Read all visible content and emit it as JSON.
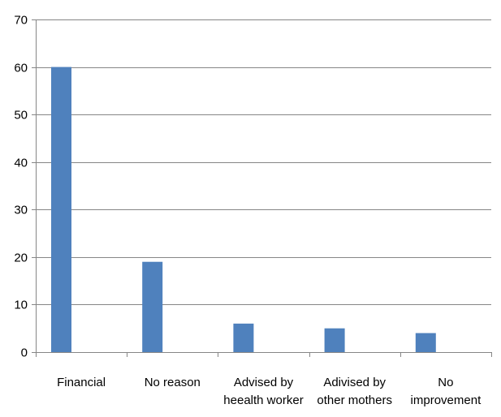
{
  "chart_data": {
    "type": "bar",
    "title": "",
    "xlabel": "",
    "ylabel": "",
    "categories": [
      [
        "Financial"
      ],
      [
        "No reason"
      ],
      [
        "Advised by",
        "heealth worker"
      ],
      [
        "Adivised by",
        "other mothers"
      ],
      [
        "No",
        "improvement"
      ]
    ],
    "values": [
      60,
      19,
      6,
      5,
      4
    ],
    "ylim": [
      0,
      70
    ],
    "yticks": [
      0,
      10,
      20,
      30,
      40,
      50,
      60,
      70
    ],
    "grid": true,
    "legend": "none",
    "colors": {
      "bar": "#4f81bd",
      "grid": "#868686",
      "axis": "#868686"
    }
  }
}
